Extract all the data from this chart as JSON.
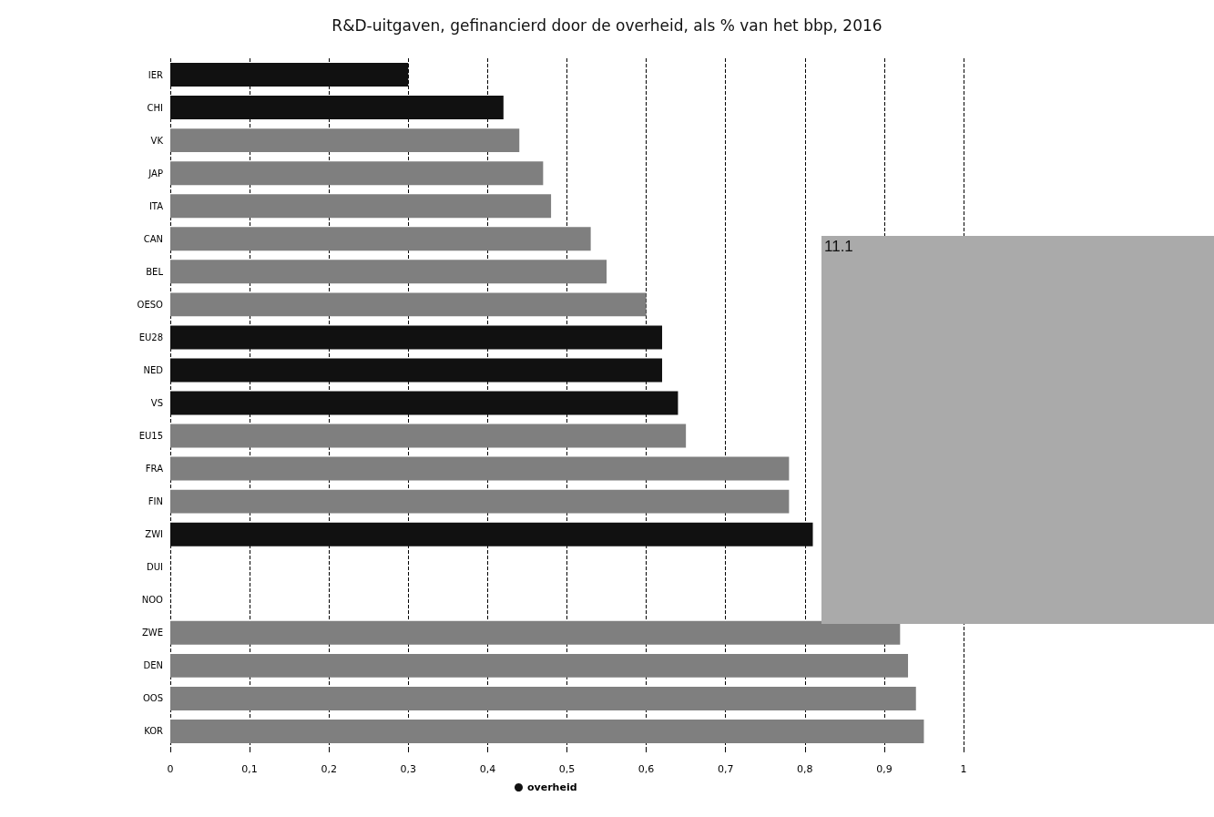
{
  "chart_data": {
    "type": "bar",
    "orientation": "horizontal",
    "title": "R&D-uitgaven, gefinancierd door de overheid, als % van het bbp, 2016",
    "categories": [
      "IER",
      "CHI",
      "VK",
      "JAP",
      "ITA",
      "CAN",
      "BEL",
      "OESO",
      "EU28",
      "NED",
      "VS",
      "EU15",
      "FRA",
      "FIN",
      "ZWI",
      "DUI",
      "NOO",
      "ZWE",
      "DEN",
      "OOS",
      "KOR"
    ],
    "series": [
      {
        "name": "overheid",
        "color": "#111111",
        "values": [
          0.3,
          0.42,
          0.44,
          0.47,
          0.48,
          0.53,
          0.55,
          0.6,
          0.62,
          0.62,
          0.64,
          0.65,
          0.78,
          0.78,
          0.81,
          null,
          null,
          0.92,
          0.93,
          0.94,
          0.95
        ],
        "colors": [
          "#111111",
          "#111111",
          "#7f7f7f",
          "#7f7f7f",
          "#7f7f7f",
          "#7f7f7f",
          "#7f7f7f",
          "#7f7f7f",
          "#111111",
          "#111111",
          "#111111",
          "#7f7f7f",
          "#7f7f7f",
          "#7f7f7f",
          "#111111",
          "#111111",
          "#111111",
          "#7f7f7f",
          "#7f7f7f",
          "#7f7f7f",
          "#7f7f7f"
        ]
      }
    ],
    "xlim": [
      0,
      1
    ],
    "xticks": [
      0,
      {
        "value": 0.1,
        "label": "0,1"
      },
      {
        "value": 0.2,
        "label": "0,2"
      },
      {
        "value": 0.3,
        "label": "0,3"
      },
      {
        "value": 0.4,
        "label": "0,4"
      },
      {
        "value": 0.5,
        "label": "0,5"
      },
      {
        "value": 0.6,
        "label": "0,6"
      },
      {
        "value": 0.7,
        "label": "0,7"
      },
      {
        "value": 0.8,
        "label": "0,8"
      },
      {
        "value": 0.9,
        "label": "0,9"
      },
      1
    ],
    "grid": "x",
    "legend": "bottom",
    "annotations": [
      "11.1"
    ]
  }
}
